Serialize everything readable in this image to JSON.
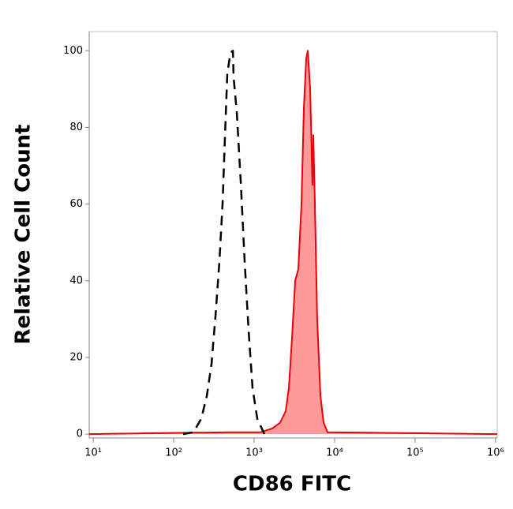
{
  "chart_data": {
    "type": "line",
    "x_label": "CD86 FITC",
    "y_label": "Relative Cell Count",
    "x_log": true,
    "xlim": [
      8.9,
      1050000
    ],
    "ylim": [
      -1,
      105
    ],
    "xticks": [
      {
        "value": 10,
        "label": "10¹"
      },
      {
        "value": 100,
        "label": "10²"
      },
      {
        "value": 1000,
        "label": "10³"
      },
      {
        "value": 10000,
        "label": "10⁴"
      },
      {
        "value": 100000,
        "label": "10⁵"
      },
      {
        "value": 1000000,
        "label": "10⁶"
      }
    ],
    "yticks": [
      0,
      20,
      40,
      60,
      80,
      100
    ],
    "series": [
      {
        "color": "#e8000b",
        "fill": "#ff9a9a",
        "linestyle": "solid",
        "x": [
          8.9,
          485,
          1197,
          1680,
          2108,
          2467,
          2700,
          2958,
          3236,
          3540,
          3873,
          4150,
          4436,
          4645,
          4966,
          5309,
          5433,
          5683,
          6081,
          6668,
          7295,
          8166,
          1047000
        ],
        "values": [
          0,
          0.5,
          0.5,
          1.5,
          3,
          6,
          12,
          25,
          40,
          43,
          60,
          85,
          98,
          100,
          90,
          65,
          78,
          60,
          30,
          10,
          3,
          0.5,
          0
        ]
      },
      {
        "color": "#000000",
        "linestyle": "dashed",
        "x": [
          131,
          176,
          220,
          258,
          296,
          331,
          370,
          405,
          434,
          464,
          508,
          544,
          556,
          608,
          681,
          762,
          853,
          955,
          1094,
          1340
        ],
        "values": [
          0,
          0.5,
          4,
          10,
          18.5,
          31,
          45,
          60,
          78,
          94,
          99.5,
          100,
          93,
          84,
          66,
          45,
          27,
          12,
          4,
          0
        ]
      }
    ]
  }
}
